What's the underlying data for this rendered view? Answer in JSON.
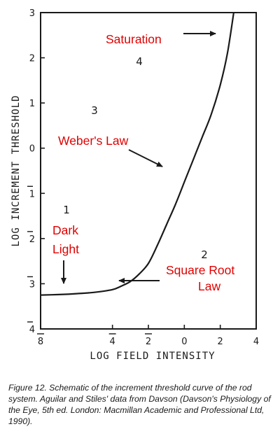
{
  "chart_data": {
    "type": "line",
    "xlabel": "LOG FIELD INTENSITY",
    "ylabel": "LOG INCREMENT THRESHOLD",
    "xlim": [
      -8,
      4
    ],
    "ylim": [
      -4,
      3
    ],
    "x_ticks": [
      {
        "value": -8,
        "label": "8"
      },
      {
        "value": -4,
        "label": "4"
      },
      {
        "value": -2,
        "label": "2"
      },
      {
        "value": 0,
        "label": "0"
      },
      {
        "value": 2,
        "label": "2"
      },
      {
        "value": 4,
        "label": "4"
      }
    ],
    "y_ticks": [
      {
        "value": 3,
        "label": "3"
      },
      {
        "value": 2,
        "label": "2"
      },
      {
        "value": 1,
        "label": "1"
      },
      {
        "value": 0,
        "label": "0"
      },
      {
        "value": -1,
        "label": "1"
      },
      {
        "value": -2,
        "label": "2"
      },
      {
        "value": -3,
        "label": "3"
      },
      {
        "value": -4,
        "label": "4"
      }
    ],
    "grid": false,
    "series": [
      {
        "color": "#1a1a1a",
        "x": [
          -8.0,
          -7.0,
          -6.0,
          -5.0,
          -4.0,
          -3.5,
          -3.0,
          -2.5,
          -2.0,
          -1.5,
          -1.0,
          -0.5,
          0.0,
          0.5,
          1.0,
          1.5,
          2.0,
          2.4,
          2.75
        ],
        "y": [
          -3.25,
          -3.24,
          -3.22,
          -3.19,
          -3.13,
          -3.05,
          -2.95,
          -2.78,
          -2.55,
          -2.15,
          -1.7,
          -1.25,
          -0.75,
          -0.25,
          0.25,
          0.75,
          1.4,
          2.1,
          3.0
        ]
      }
    ],
    "region_labels": [
      {
        "text": "4",
        "x": -2.6,
        "y": 2.0
      },
      {
        "text": "3",
        "x": -5.4,
        "y": 0.6
      },
      {
        "text": "1",
        "x": -7.3,
        "y": -1.5
      },
      {
        "text": "2",
        "x": 1.7,
        "y": -2.6
      }
    ],
    "annotations": {
      "color": "#e00000",
      "saturation": "Saturation",
      "webers_law": "Weber's Law",
      "dark_light_line1": "Dark",
      "dark_light_line2": "Light",
      "square_root_line1": "Square Root",
      "square_root_line2": "Law"
    }
  },
  "caption": "Figure 12. Schematic of the increment threshold curve of the rod system. Aguilar and Stiles' data from Davson (Davson's Physiology of the Eye, 5th ed. London: Macmillan Academic and Professional Ltd, 1990)."
}
